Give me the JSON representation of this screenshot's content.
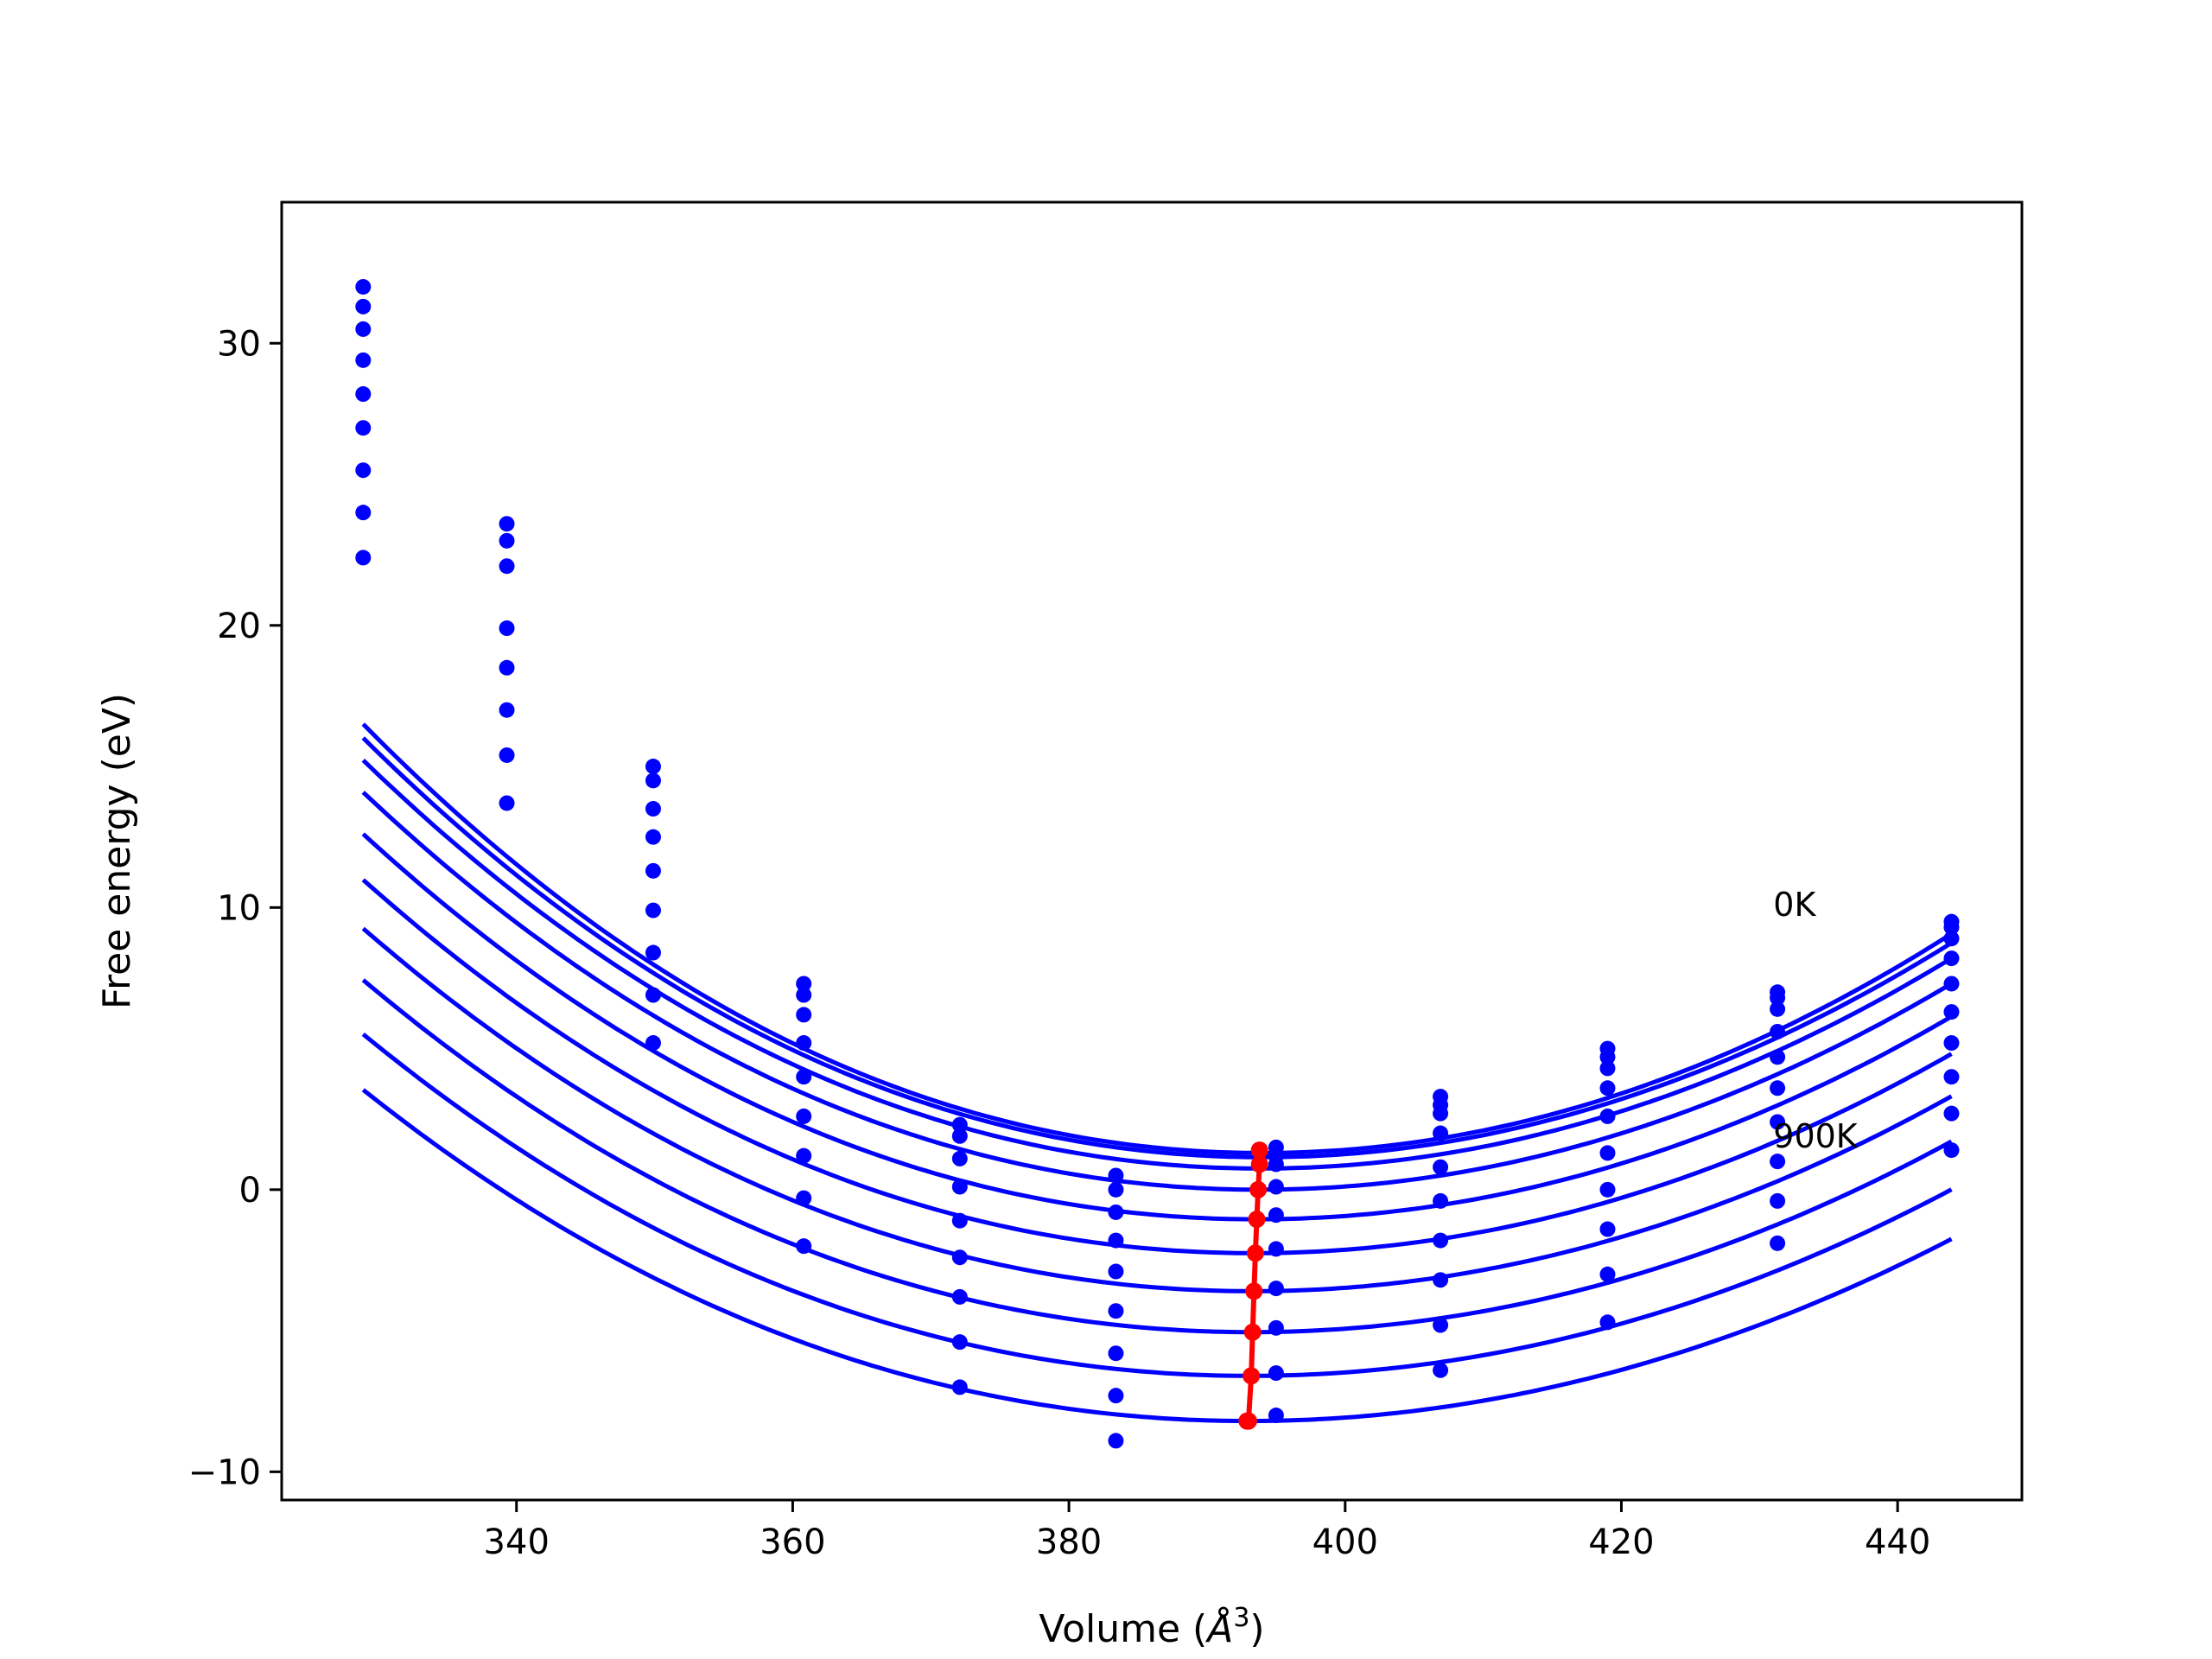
{
  "chart_data": {
    "type": "line",
    "title": "",
    "xlabel": "Volume (",
    "xlabel_symbol": "Å",
    "xlabel_exp": "3",
    "xlabel_close": ")",
    "ylabel": "Free energy (eV)",
    "xlim": [
      323,
      449
    ],
    "ylim": [
      -11,
      35
    ],
    "xticks": [
      340,
      360,
      380,
      400,
      420,
      440
    ],
    "yticks": [
      -10,
      0,
      10,
      20,
      30
    ],
    "xtick_labels": [
      "340",
      "360",
      "380",
      "400",
      "420",
      "440"
    ],
    "ytick_labels": [
      "−10",
      "0",
      "10",
      "20",
      "30"
    ],
    "grid": false,
    "series_color": "#0000ff",
    "min_curve_color": "#ff0000",
    "annotations": [
      {
        "text": "0K",
        "x": 431,
        "y": 9.7
      },
      {
        "text": "900K",
        "x": 431,
        "y": 1.5
      }
    ],
    "curve_x_range": [
      328.9,
      443.9
    ],
    "volumes": [
      328.9,
      339.3,
      349.9,
      360.8,
      372.1,
      383.4,
      395.0,
      406.9,
      419.0,
      431.3,
      443.9
    ],
    "curves": [
      {
        "v0": 394.0,
        "e0": 1.3,
        "a": 0.00312,
        "b": 0.0
      },
      {
        "v0": 394.0,
        "e0": 1.15,
        "a": 0.00305,
        "b": 0.0
      },
      {
        "v0": 393.9,
        "e0": 0.75,
        "a": 0.00298,
        "b": 0.0
      },
      {
        "v0": 393.8,
        "e0": 0.0,
        "a": 0.00291,
        "b": 0.0
      },
      {
        "v0": 393.6,
        "e0": -1.05,
        "a": 0.00284,
        "b": 0.0
      },
      {
        "v0": 393.4,
        "e0": -2.25,
        "a": 0.00277,
        "b": 0.0
      },
      {
        "v0": 393.3,
        "e0": -3.6,
        "a": 0.0027,
        "b": 0.0
      },
      {
        "v0": 393.2,
        "e0": -5.05,
        "a": 0.00263,
        "b": 0.0
      },
      {
        "v0": 393.1,
        "e0": -6.6,
        "a": 0.00256,
        "b": 0.0
      },
      {
        "v0": 393.0,
        "e0": -8.2,
        "a": 0.00249,
        "b": 0.0
      }
    ],
    "min_line": {
      "x": [
        393.8,
        393.8,
        393.7,
        393.6,
        393.5,
        393.4,
        393.3,
        393.2,
        393.0,
        392.9
      ],
      "y": [
        1.4,
        0.9,
        0.0,
        -1.05,
        -2.25,
        -3.6,
        -5.05,
        -6.6,
        -8.2,
        -8.2
      ]
    },
    "scatter_points": {
      "328.9": [
        32.0,
        31.3,
        30.5,
        29.4,
        28.2,
        27.0,
        25.5,
        24.0,
        22.4
      ],
      "339.3": [
        23.6,
        23.0,
        22.1,
        19.9,
        18.5,
        17.0,
        15.4,
        13.7
      ],
      "349.9": [
        15.0,
        14.5,
        13.5,
        12.5,
        11.3,
        9.9,
        8.4,
        6.9,
        5.2
      ],
      "360.8": [
        7.3,
        6.9,
        6.2,
        5.2,
        4.0,
        2.6,
        1.2,
        -0.3,
        -2.0
      ],
      "372.1": [
        2.3,
        1.9,
        1.1,
        0.1,
        -1.1,
        -2.4,
        -3.8,
        -5.4,
        -7.0
      ],
      "383.4": [
        0.5,
        0.0,
        -0.8,
        -1.8,
        -2.9,
        -4.3,
        -5.8,
        -7.3,
        -8.9
      ],
      "395.0": [
        1.5,
        1.2,
        0.9,
        0.1,
        -0.9,
        -2.1,
        -3.5,
        -4.9,
        -6.5,
        -8.0
      ],
      "406.9": [
        3.3,
        3.0,
        2.7,
        2.0,
        0.8,
        -0.4,
        -1.8,
        -3.2,
        -4.8,
        -6.4
      ],
      "419.0": [
        5.0,
        4.7,
        4.3,
        3.6,
        2.6,
        1.3,
        0.0,
        -1.4,
        -3.0,
        -4.7
      ],
      "431.3": [
        7.0,
        6.8,
        6.4,
        5.6,
        4.7,
        3.6,
        2.4,
        1.0,
        -0.4,
        -1.9
      ],
      "443.9": [
        9.5,
        9.3,
        8.9,
        8.2,
        7.3,
        6.3,
        5.2,
        4.0,
        2.7,
        1.4
      ]
    }
  }
}
